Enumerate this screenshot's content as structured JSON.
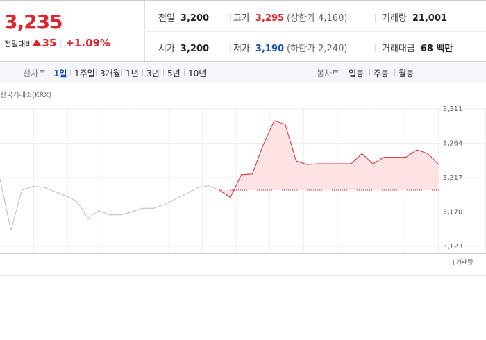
{
  "header": {
    "price": "3,235",
    "change_label": "전일대비",
    "change": "35",
    "change_rate": "+1.09%"
  },
  "stats": [
    [
      {
        "label": "전일",
        "value": "3,200"
      },
      {
        "label": "고가",
        "value": "3,295",
        "extra": "(상한가 4,160)"
      },
      {
        "label": "거래량",
        "value": "21,001"
      }
    ],
    [
      {
        "label": "시가",
        "value": "3,200"
      },
      {
        "label": "저가",
        "value": "3,190",
        "extra": "(하한가 2,240)"
      },
      {
        "label": "거래대금",
        "value": "68 백만"
      }
    ]
  ],
  "tabs": {
    "line_label": "선차트",
    "line_periods": [
      "1일",
      "1주일",
      "3개월",
      "1년",
      "3년",
      "5년",
      "10년"
    ],
    "active": 0,
    "candle_label": "봉차트",
    "candle_periods": [
      "일봉",
      "주봉",
      "월봉"
    ]
  },
  "chart_data": {
    "type": "line",
    "source": "한국거래소(KRX)",
    "volume_label": "거래량",
    "x": [
      0,
      1,
      2,
      3,
      4,
      5,
      6,
      7,
      8,
      9,
      10,
      11,
      12,
      13,
      14,
      15,
      16,
      17,
      18,
      19,
      20,
      21,
      22,
      23,
      24,
      25,
      26,
      27,
      28,
      29,
      30,
      31,
      32,
      33,
      34,
      35,
      36,
      37,
      38,
      39,
      40
    ],
    "series": [
      {
        "color": "#bbbbbb",
        "values": [
          3215,
          3145,
          3200,
          3205,
          3204,
          3198,
          3192,
          3185,
          3161,
          3172,
          3166,
          3166,
          3170,
          3175,
          3175,
          3180,
          3188,
          3195,
          3203,
          3206,
          3200,
          null,
          null,
          null,
          null,
          null,
          null,
          null,
          null,
          null,
          null,
          null,
          null,
          null,
          null,
          null,
          null,
          null,
          null,
          null,
          null
        ]
      },
      {
        "color": "#e0242b",
        "values": [
          null,
          null,
          null,
          null,
          null,
          null,
          null,
          null,
          null,
          null,
          null,
          null,
          null,
          null,
          null,
          null,
          null,
          null,
          null,
          null,
          3200,
          3190,
          3221,
          3222,
          3262,
          3295,
          3290,
          3240,
          3235,
          3236,
          3236,
          3236,
          3236,
          3250,
          3236,
          3245,
          3245,
          3245,
          3255,
          3250,
          3235
        ]
      }
    ],
    "baseline": 3200,
    "xlim": [
      0,
      40
    ],
    "ylim": [
      3113.5,
      3313
    ],
    "yticks": [
      {
        "value": 3311,
        "label": "3,311"
      },
      {
        "value": 3264,
        "label": "3,264"
      },
      {
        "value": 3217,
        "label": "3,217"
      },
      {
        "value": 3170,
        "label": "3,170"
      },
      {
        "value": 3123,
        "label": "3,123"
      }
    ],
    "grid": true
  }
}
